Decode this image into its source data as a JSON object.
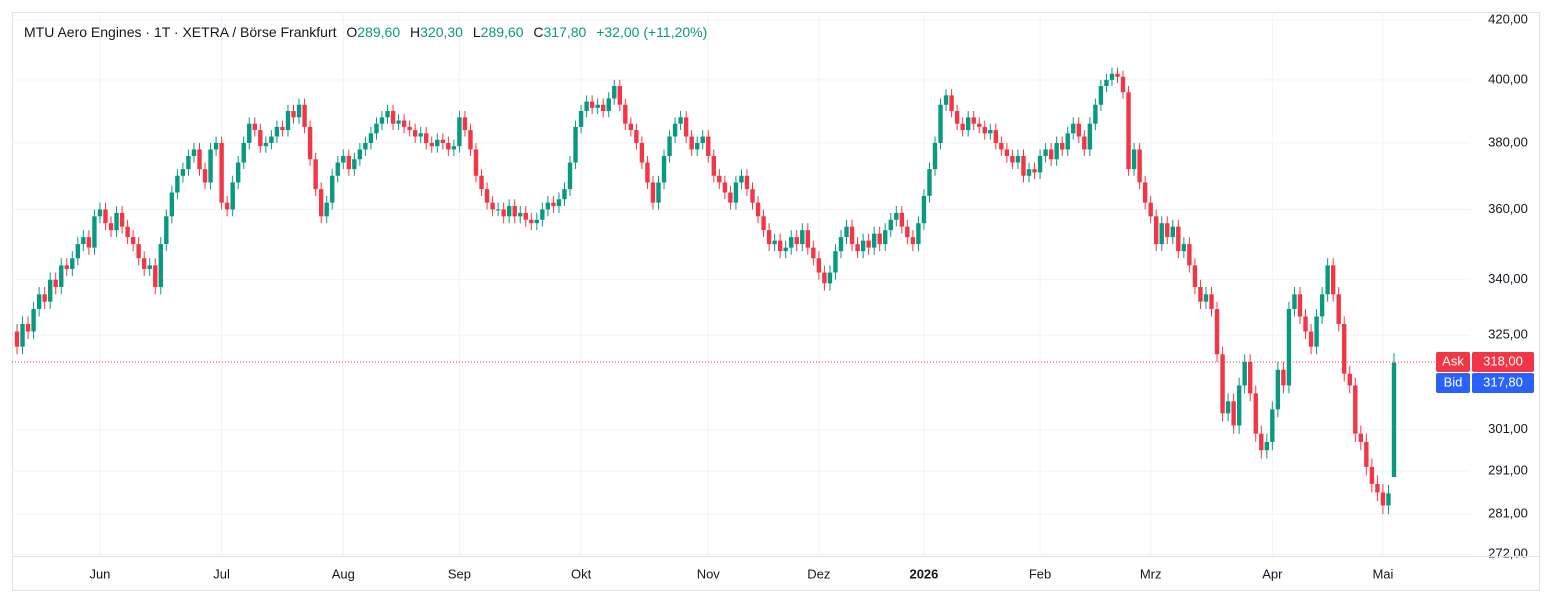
{
  "chart_data": {
    "type": "candlestick",
    "header": {
      "title": "MTU Aero Engines · 1T · XETRA / Börse Frankfurt",
      "ohlc": [
        {
          "label": "O",
          "value": "289,60"
        },
        {
          "label": "H",
          "value": "320,30"
        },
        {
          "label": "L",
          "value": "289,60"
        },
        {
          "label": "C",
          "value": "317,80"
        }
      ],
      "change": "+32,00 (+11,20%)"
    },
    "up_color": "#089981",
    "down_color": "#f23645",
    "log_scale": true,
    "grid": true,
    "ylim": [
      271.6,
      422.7
    ],
    "yticks": [
      {
        "value": 272,
        "label": "272,00"
      },
      {
        "value": 281,
        "label": "281,00"
      },
      {
        "value": 291,
        "label": "291,00"
      },
      {
        "value": 301,
        "label": "301,00"
      },
      {
        "value": 325,
        "label": "325,00"
      },
      {
        "value": 340,
        "label": "340,00"
      },
      {
        "value": 360,
        "label": "360,00"
      },
      {
        "value": 380,
        "label": "380,00"
      },
      {
        "value": 400,
        "label": "400,00"
      },
      {
        "value": 420,
        "label": "420,00"
      }
    ],
    "xticks": [
      {
        "value": 15,
        "label": "Jun"
      },
      {
        "value": 37,
        "label": "Jul"
      },
      {
        "value": 59,
        "label": "Aug"
      },
      {
        "value": 80,
        "label": "Sep"
      },
      {
        "value": 102,
        "label": "Okt"
      },
      {
        "value": 125,
        "label": "Nov"
      },
      {
        "value": 145,
        "label": "Dez"
      },
      {
        "value": 164,
        "label": "2026"
      },
      {
        "value": 185,
        "label": "Feb"
      },
      {
        "value": 205,
        "label": "Mrz"
      },
      {
        "value": 227,
        "label": "Apr"
      },
      {
        "value": 247,
        "label": "Mai"
      }
    ],
    "ask": {
      "label": "Ask",
      "value": 318,
      "value_label": "318,00",
      "color": "#f23645"
    },
    "bid": {
      "label": "Bid",
      "value": 317.8,
      "value_label": "317,80",
      "color": "#2962ff"
    },
    "open": [
      326,
      322,
      328,
      326,
      332,
      336,
      334,
      340,
      338,
      344,
      343,
      346,
      350,
      352,
      349,
      358,
      360,
      356,
      354,
      359,
      355,
      352,
      350,
      346,
      343,
      344,
      338,
      350,
      358,
      365,
      370,
      372,
      376,
      378,
      372,
      368,
      378,
      380,
      362,
      360,
      368,
      374,
      380,
      386,
      384,
      379,
      380,
      382,
      385,
      384,
      390,
      388,
      392,
      385,
      375,
      366,
      358,
      362,
      370,
      374,
      376,
      372,
      375,
      378,
      380,
      383,
      386,
      388,
      390,
      386,
      387,
      385,
      384,
      382,
      383,
      380,
      379,
      381,
      380,
      378,
      379,
      388,
      384,
      378,
      370,
      366,
      362,
      360,
      360,
      358,
      361,
      358,
      359,
      357,
      356,
      357,
      360,
      362,
      361,
      363,
      366,
      374,
      385,
      390,
      393,
      391,
      392,
      390,
      394,
      398,
      392,
      386,
      384,
      380,
      374,
      368,
      362,
      368,
      376,
      382,
      386,
      388,
      382,
      378,
      380,
      382,
      376,
      370,
      368,
      365,
      362,
      368,
      370,
      366,
      362,
      358,
      354,
      350,
      351,
      348,
      349,
      352,
      350,
      354,
      349,
      346,
      342,
      339,
      342,
      348,
      352,
      355,
      350,
      348,
      351,
      349,
      353,
      350,
      354,
      357,
      359,
      355,
      352,
      350,
      356,
      364,
      372,
      380,
      392,
      395,
      390,
      386,
      384,
      388,
      386,
      385,
      383,
      384,
      380,
      378,
      376,
      374,
      376,
      370,
      372,
      371,
      376,
      378,
      375,
      380,
      378,
      383,
      386,
      382,
      378,
      386,
      392,
      398,
      400,
      402,
      401,
      396,
      372,
      378,
      368,
      362,
      358,
      350,
      356,
      352,
      355,
      348,
      350,
      344,
      338,
      334,
      336,
      332,
      320,
      305,
      308,
      302,
      312,
      318,
      310,
      300,
      296,
      298,
      306,
      316,
      312,
      332,
      336,
      330,
      326,
      322,
      330,
      336,
      344,
      336,
      328,
      315,
      312,
      300,
      298,
      292,
      288,
      286,
      283,
      289.6
    ],
    "high": [
      328,
      330,
      330,
      334,
      338,
      338,
      342,
      342,
      346,
      346,
      348,
      352,
      354,
      354,
      360,
      362,
      362,
      358,
      361,
      361,
      357,
      354,
      352,
      348,
      346,
      346,
      352,
      360,
      367,
      372,
      374,
      378,
      380,
      380,
      374,
      380,
      382,
      382,
      364,
      370,
      376,
      382,
      388,
      388,
      386,
      382,
      384,
      387,
      387,
      392,
      392,
      394,
      394,
      387,
      377,
      368,
      364,
      372,
      376,
      378,
      378,
      377,
      380,
      382,
      385,
      388,
      390,
      392,
      392,
      389,
      389,
      387,
      386,
      385,
      385,
      382,
      383,
      383,
      382,
      381,
      390,
      390,
      386,
      380,
      372,
      368,
      364,
      362,
      362,
      363,
      363,
      361,
      361,
      359,
      359,
      362,
      364,
      364,
      365,
      368,
      376,
      387,
      392,
      395,
      395,
      394,
      394,
      396,
      400,
      400,
      394,
      388,
      386,
      382,
      376,
      370,
      370,
      378,
      384,
      388,
      390,
      390,
      384,
      382,
      384,
      384,
      378,
      372,
      370,
      367,
      370,
      372,
      372,
      368,
      364,
      360,
      356,
      353,
      353,
      351,
      354,
      354,
      356,
      356,
      351,
      348,
      344,
      344,
      350,
      354,
      357,
      357,
      352,
      353,
      353,
      355,
      355,
      356,
      359,
      361,
      361,
      357,
      354,
      358,
      366,
      374,
      382,
      394,
      397,
      397,
      392,
      388,
      390,
      390,
      388,
      387,
      386,
      386,
      382,
      380,
      378,
      378,
      378,
      374,
      374,
      378,
      380,
      380,
      382,
      382,
      385,
      388,
      388,
      384,
      388,
      394,
      400,
      402,
      404,
      404,
      403,
      398,
      380,
      380,
      370,
      364,
      360,
      358,
      358,
      357,
      357,
      352,
      352,
      346,
      340,
      338,
      338,
      334,
      322,
      310,
      310,
      314,
      320,
      320,
      312,
      302,
      300,
      308,
      318,
      318,
      334,
      338,
      338,
      332,
      328,
      332,
      338,
      346,
      346,
      338,
      330,
      317,
      314,
      302,
      300,
      294,
      290,
      288,
      287.8,
      320.3
    ],
    "low": [
      320,
      320,
      324,
      324,
      330,
      332,
      332,
      336,
      336,
      341,
      341,
      344,
      348,
      347,
      347,
      356,
      354,
      352,
      352,
      353,
      350,
      348,
      344,
      341,
      341,
      336,
      336,
      348,
      356,
      363,
      368,
      370,
      374,
      370,
      366,
      366,
      376,
      360,
      358,
      358,
      366,
      372,
      378,
      382,
      377,
      377,
      378,
      380,
      382,
      382,
      386,
      386,
      383,
      373,
      364,
      356,
      356,
      360,
      368,
      372,
      370,
      370,
      373,
      376,
      378,
      381,
      384,
      386,
      384,
      384,
      383,
      382,
      380,
      380,
      378,
      377,
      377,
      378,
      376,
      376,
      377,
      382,
      376,
      368,
      364,
      360,
      358,
      358,
      356,
      356,
      356,
      356,
      355,
      354,
      354,
      355,
      358,
      359,
      359,
      361,
      364,
      372,
      383,
      388,
      389,
      389,
      388,
      388,
      392,
      390,
      384,
      382,
      378,
      372,
      366,
      360,
      360,
      366,
      374,
      380,
      384,
      380,
      376,
      376,
      378,
      374,
      368,
      366,
      363,
      360,
      360,
      366,
      364,
      360,
      356,
      352,
      348,
      348,
      346,
      346,
      347,
      348,
      348,
      347,
      344,
      340,
      337,
      337,
      340,
      346,
      350,
      348,
      346,
      346,
      347,
      347,
      348,
      348,
      352,
      355,
      353,
      350,
      348,
      348,
      354,
      362,
      370,
      378,
      390,
      388,
      384,
      382,
      382,
      384,
      383,
      381,
      381,
      378,
      376,
      374,
      372,
      372,
      368,
      368,
      369,
      369,
      374,
      373,
      373,
      376,
      376,
      381,
      380,
      376,
      376,
      384,
      390,
      396,
      398,
      399,
      394,
      370,
      370,
      366,
      360,
      356,
      348,
      348,
      350,
      350,
      346,
      346,
      342,
      336,
      332,
      332,
      330,
      318,
      303,
      303,
      300,
      300,
      310,
      308,
      298,
      294,
      294,
      296,
      304,
      310,
      310,
      330,
      328,
      324,
      320,
      320,
      328,
      334,
      334,
      326,
      313,
      310,
      298,
      296,
      290,
      286,
      284,
      281,
      281,
      289.6
    ],
    "close": [
      322,
      328,
      326,
      332,
      336,
      334,
      340,
      338,
      344,
      343,
      346,
      350,
      352,
      349,
      358,
      360,
      356,
      354,
      359,
      355,
      352,
      350,
      346,
      343,
      344,
      338,
      350,
      358,
      365,
      370,
      372,
      376,
      378,
      372,
      368,
      378,
      380,
      362,
      360,
      368,
      374,
      380,
      386,
      384,
      379,
      380,
      382,
      385,
      384,
      390,
      388,
      392,
      385,
      375,
      366,
      358,
      362,
      370,
      374,
      376,
      372,
      375,
      378,
      380,
      383,
      386,
      388,
      390,
      386,
      387,
      385,
      384,
      382,
      383,
      380,
      379,
      381,
      380,
      378,
      379,
      388,
      384,
      378,
      370,
      366,
      362,
      360,
      360,
      358,
      361,
      358,
      359,
      357,
      356,
      357,
      360,
      362,
      361,
      363,
      366,
      374,
      385,
      390,
      393,
      391,
      392,
      390,
      394,
      398,
      392,
      386,
      384,
      380,
      374,
      368,
      362,
      368,
      376,
      382,
      386,
      388,
      382,
      378,
      380,
      382,
      376,
      370,
      368,
      365,
      362,
      368,
      370,
      366,
      362,
      358,
      354,
      350,
      351,
      348,
      349,
      352,
      350,
      354,
      349,
      346,
      342,
      339,
      342,
      348,
      352,
      355,
      350,
      348,
      351,
      349,
      353,
      350,
      354,
      357,
      359,
      355,
      352,
      350,
      356,
      364,
      372,
      380,
      392,
      395,
      390,
      386,
      384,
      388,
      386,
      385,
      383,
      384,
      380,
      378,
      376,
      374,
      376,
      370,
      372,
      371,
      376,
      378,
      375,
      380,
      378,
      383,
      386,
      382,
      378,
      386,
      392,
      398,
      400,
      402,
      401,
      396,
      372,
      378,
      368,
      362,
      358,
      350,
      356,
      352,
      355,
      348,
      350,
      344,
      338,
      334,
      336,
      332,
      320,
      305,
      308,
      302,
      312,
      318,
      310,
      300,
      296,
      298,
      306,
      316,
      312,
      332,
      336,
      330,
      326,
      322,
      330,
      336,
      344,
      336,
      328,
      315,
      312,
      300,
      298,
      292,
      288,
      286,
      283,
      285.8,
      317.8
    ]
  }
}
